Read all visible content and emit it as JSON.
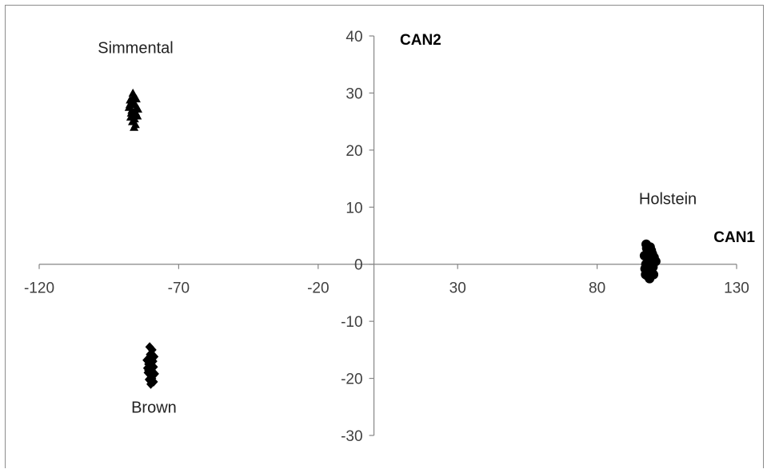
{
  "chart_data": {
    "type": "scatter",
    "title": "",
    "xlabel": "CAN1",
    "ylabel": "CAN2",
    "xlim": [
      -120,
      130
    ],
    "ylim": [
      -30,
      40
    ],
    "xticks": [
      -120,
      -70,
      -20,
      30,
      80,
      130
    ],
    "yticks": [
      -30,
      -20,
      -10,
      0,
      10,
      20,
      30,
      40
    ],
    "legend": "none",
    "grid": false,
    "series": [
      {
        "name": "Simmental",
        "marker": "triangle",
        "color": "#000000",
        "points": [
          [
            -86.5,
            26
          ],
          [
            -85.5,
            24.5
          ],
          [
            -87.5,
            28
          ],
          [
            -86,
            29.5
          ],
          [
            -85,
            27.5
          ],
          [
            -87,
            26.5
          ],
          [
            -85.8,
            25.5
          ],
          [
            -86.8,
            27
          ],
          [
            -84.8,
            26
          ],
          [
            -87.8,
            27.5
          ],
          [
            -86.2,
            28.5
          ],
          [
            -85.2,
            29
          ],
          [
            -86.6,
            25
          ],
          [
            -85.6,
            28
          ],
          [
            -87.2,
            25.8
          ],
          [
            -84.6,
            27.2
          ],
          [
            -86.4,
            30
          ],
          [
            -85.4,
            26.6
          ],
          [
            -87.4,
            28.8
          ],
          [
            -86,
            24
          ]
        ]
      },
      {
        "name": "Brown",
        "marker": "diamond",
        "color": "#000000",
        "points": [
          [
            -79.5,
            -15
          ],
          [
            -80.5,
            -16.5
          ],
          [
            -79,
            -18
          ],
          [
            -81,
            -19
          ],
          [
            -80,
            -20.5
          ],
          [
            -79.2,
            -17
          ],
          [
            -80.8,
            -17.5
          ],
          [
            -79.8,
            -19.5
          ],
          [
            -80.2,
            -15.8
          ],
          [
            -81.2,
            -18.2
          ],
          [
            -78.8,
            -16.2
          ],
          [
            -80,
            -21
          ],
          [
            -79.6,
            -20
          ],
          [
            -80.6,
            -20.2
          ],
          [
            -79.4,
            -18.8
          ],
          [
            -81.4,
            -16.8
          ],
          [
            -78.6,
            -19.2
          ],
          [
            -80.4,
            -14.5
          ],
          [
            -79,
            -20.6
          ],
          [
            -80.8,
            -18.6
          ]
        ]
      },
      {
        "name": "Holstein",
        "marker": "circle",
        "color": "#000000",
        "points": [
          [
            98,
            2
          ],
          [
            99,
            1
          ],
          [
            97.5,
            0
          ],
          [
            98.5,
            -1
          ],
          [
            99.5,
            0.5
          ],
          [
            97,
            1.5
          ],
          [
            98,
            -2
          ],
          [
            99,
            3
          ],
          [
            100,
            -0.5
          ],
          [
            97.8,
            2.8
          ],
          [
            98.8,
            -2.5
          ],
          [
            99.8,
            1.8
          ],
          [
            97.2,
            -0.8
          ],
          [
            98.2,
            0.2
          ],
          [
            101,
            0.5
          ],
          [
            97.6,
            3.5
          ],
          [
            98.6,
            -1.6
          ],
          [
            99.4,
            2.4
          ],
          [
            100.4,
            1.2
          ],
          [
            97.4,
            -1.8
          ],
          [
            98.4,
            1.4
          ],
          [
            99.2,
            -1.2
          ],
          [
            100.2,
            -1.8
          ],
          [
            98.9,
            0.8
          ]
        ]
      }
    ],
    "annotations": [
      {
        "text": "Simmental",
        "x": -99,
        "y": 37
      },
      {
        "text": "Brown",
        "x": -87,
        "y": -26
      },
      {
        "text": "Holstein",
        "x": 95,
        "y": 10.5
      }
    ]
  }
}
